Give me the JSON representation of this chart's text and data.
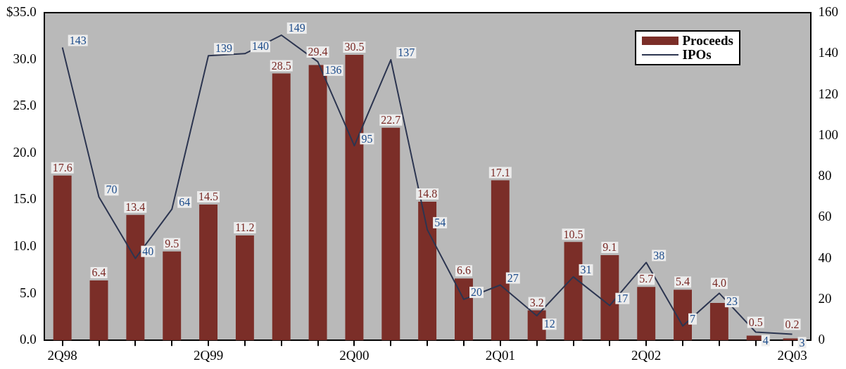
{
  "chart_data": {
    "type": "bar",
    "categories": [
      "2Q98",
      null,
      null,
      null,
      "2Q99",
      null,
      null,
      null,
      "2Q00",
      null,
      null,
      null,
      "2Q01",
      null,
      null,
      null,
      "2Q02",
      null,
      null,
      null,
      "2Q03"
    ],
    "series": [
      {
        "name": "Proceeds",
        "type": "bar",
        "color": "#7b2e28",
        "values": [
          17.6,
          6.4,
          13.4,
          9.5,
          14.5,
          11.2,
          28.5,
          29.4,
          30.5,
          22.7,
          14.8,
          6.6,
          17.1,
          3.2,
          10.5,
          9.1,
          5.7,
          5.4,
          4.0,
          0.5,
          0.2
        ],
        "value_labels": [
          "17.6",
          "6.4",
          "13.4",
          "9.5",
          "14.5",
          "11.2",
          "28.5",
          "29.4",
          "30.5",
          "22.7",
          "14.8",
          "6.6",
          "17.1",
          "3.2",
          "10.5",
          "9.1",
          "5.7",
          "5.4",
          "4.0",
          "0.5",
          "0.2"
        ]
      },
      {
        "name": "IPOs",
        "type": "line",
        "axis": "y2",
        "color": "#2c3550",
        "values": [
          143,
          70,
          40,
          64,
          139,
          140,
          149,
          136,
          95,
          137,
          54,
          20,
          27,
          12,
          31,
          17,
          38,
          7,
          23,
          4,
          3
        ]
      }
    ],
    "ylim": [
      0,
      35
    ],
    "yticks": [
      {
        "value": 0,
        "label": "0.0"
      },
      {
        "value": 5,
        "label": "5.0"
      },
      {
        "value": 10,
        "label": "10.0"
      },
      {
        "value": 15,
        "label": "15.0"
      },
      {
        "value": 20,
        "label": "20.0"
      },
      {
        "value": 25,
        "label": "25.0"
      },
      {
        "value": 30,
        "label": "30.0"
      },
      {
        "value": 35,
        "label": "$35.0"
      }
    ],
    "y2lim": [
      0,
      160
    ],
    "y2ticks": [
      0,
      20,
      40,
      60,
      80,
      100,
      120,
      140,
      160
    ],
    "data_labels": true,
    "grid": false,
    "legend": "top right",
    "marker": "none",
    "line_style": "solid"
  }
}
